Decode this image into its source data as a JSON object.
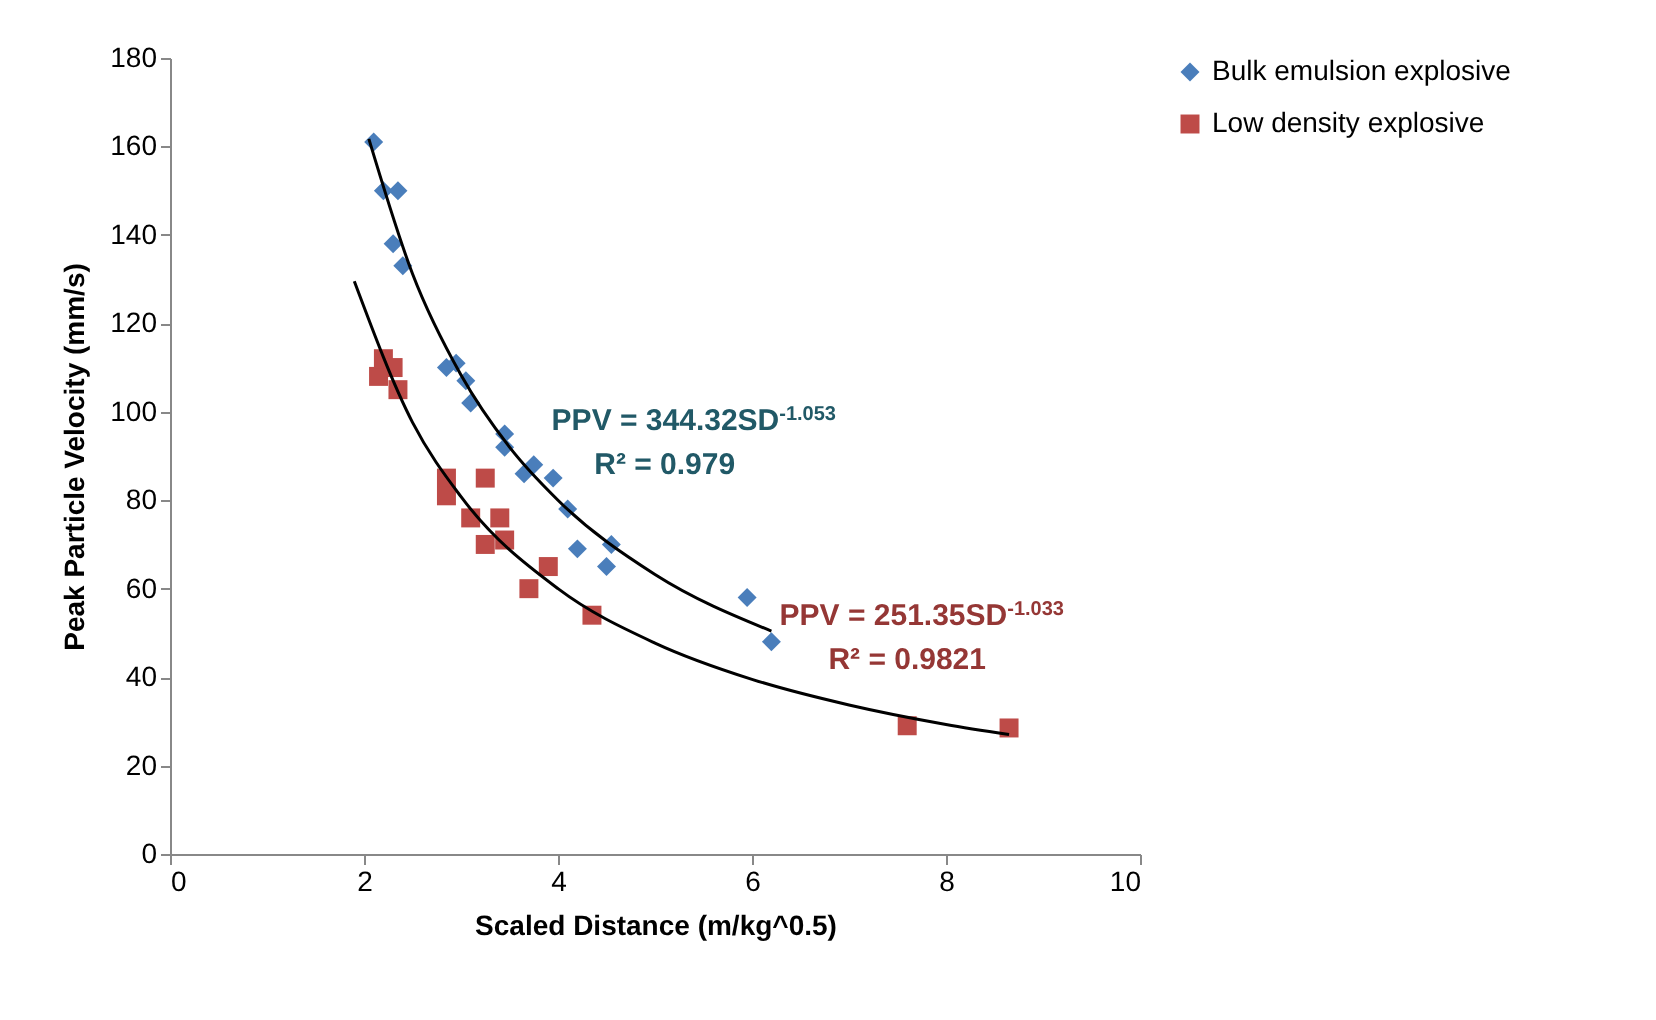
{
  "chart_data": {
    "type": "scatter",
    "xlabel": "Scaled Distance (m/kg^0.5)",
    "ylabel": "Peak Particle Velocity (mm/s)",
    "xlim": [
      0,
      10
    ],
    "xticks": [
      0,
      2,
      4,
      6,
      8,
      10
    ],
    "ylim": [
      0,
      180
    ],
    "yticks": [
      0,
      20,
      40,
      60,
      80,
      100,
      120,
      140,
      160,
      180
    ],
    "legend": "right",
    "grid": false,
    "series": [
      {
        "name": "Bulk emulsion explosive",
        "color": "#4a7ebb",
        "marker": "diamond",
        "x": [
          2.1,
          2.2,
          2.35,
          2.3,
          2.4,
          2.85,
          2.95,
          3.05,
          3.1,
          3.45,
          3.45,
          3.65,
          3.75,
          3.95,
          4.1,
          4.2,
          4.5,
          4.55,
          5.95,
          6.2
        ],
        "values": [
          161,
          150,
          150,
          138,
          133,
          110,
          111,
          107,
          102,
          95,
          92,
          86,
          88,
          85,
          78,
          69,
          65,
          70,
          58,
          48
        ]
      },
      {
        "name": "Low density explosive",
        "color": "#be4b48",
        "marker": "square",
        "x": [
          2.15,
          2.2,
          2.3,
          2.35,
          2.85,
          2.85,
          3.1,
          3.25,
          3.25,
          3.4,
          3.45,
          3.7,
          3.9,
          4.35,
          7.6,
          8.65
        ],
        "values": [
          108,
          112,
          110,
          105,
          85,
          81,
          76,
          85,
          70,
          76,
          71,
          60,
          65,
          54,
          29,
          28.5
        ]
      },
      {
        "type": "line",
        "color": "#000000",
        "marker": "none",
        "x": [
          2.05,
          2.5,
          3,
          3.5,
          4,
          5,
          6.2
        ],
        "values": [
          161.7,
          131.2,
          108.3,
          92.0,
          80.0,
          63.2,
          50.4
        ]
      },
      {
        "type": "line",
        "color": "#000000",
        "marker": "none",
        "x": [
          1.9,
          2.5,
          3,
          4,
          5,
          6,
          7,
          8,
          8.65
        ],
        "values": [
          129.5,
          97.6,
          80.8,
          60.0,
          47.7,
          39.5,
          33.7,
          29.3,
          27.0
        ]
      }
    ],
    "annotations": [
      "PPV = 344.32SD$^{-1.053}$",
      "R² = 0.979",
      "PPV = 251.35SD$^{-1.033}$",
      "R² = 0.9821"
    ]
  }
}
